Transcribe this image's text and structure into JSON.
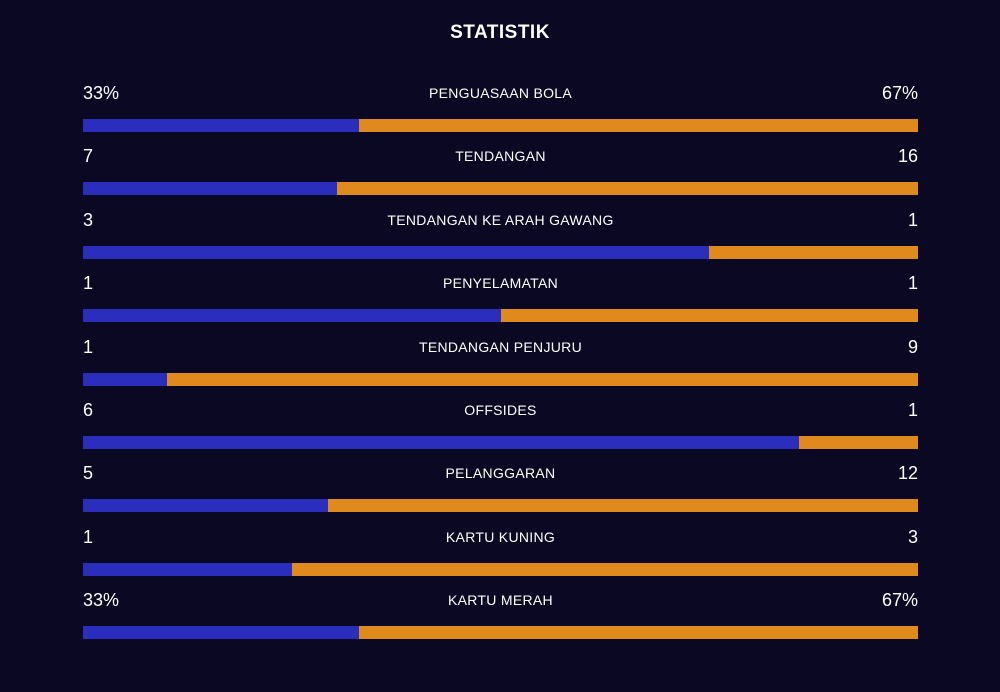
{
  "title": "STATISTIK",
  "colors": {
    "background": "#0a0823",
    "home": "#2b2dbd",
    "away": "#e08a1e"
  },
  "stats": [
    {
      "label": "PENGUASAAN BOLA",
      "home": "33%",
      "away": "67%",
      "home_share": 0.33
    },
    {
      "label": "TENDANGAN",
      "home": "7",
      "away": "16",
      "home_share": 0.304
    },
    {
      "label": "TENDANGAN KE ARAH GAWANG",
      "home": "3",
      "away": "1",
      "home_share": 0.75
    },
    {
      "label": "PENYELAMATAN",
      "home": "1",
      "away": "1",
      "home_share": 0.5
    },
    {
      "label": "TENDANGAN PENJURU",
      "home": "1",
      "away": "9",
      "home_share": 0.1
    },
    {
      "label": "OFFSIDES",
      "home": "6",
      "away": "1",
      "home_share": 0.857
    },
    {
      "label": "PELANGGARAN",
      "home": "5",
      "away": "12",
      "home_share": 0.294
    },
    {
      "label": "KARTU KUNING",
      "home": "1",
      "away": "3",
      "home_share": 0.25
    },
    {
      "label": "KARTU MERAH",
      "home": "33%",
      "away": "67%",
      "home_share": 0.33
    }
  ]
}
